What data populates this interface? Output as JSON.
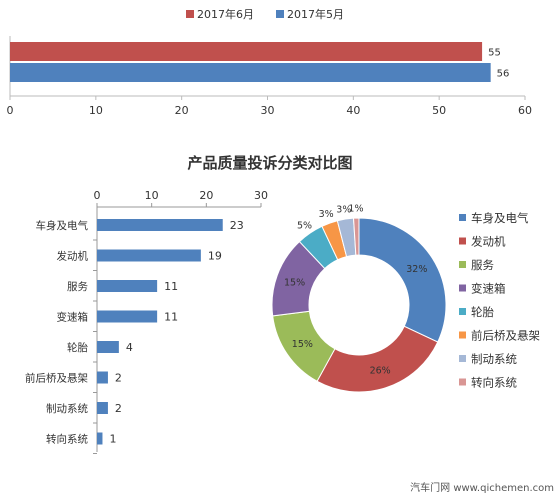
{
  "chart_data": [
    {
      "type": "bar",
      "orientation": "horizontal",
      "legend_position": "top",
      "xlim": [
        0,
        60
      ],
      "xticks": [
        0,
        10,
        20,
        30,
        40,
        50,
        60
      ],
      "series": [
        {
          "name": "2017年6月",
          "color": "#c0504d",
          "values": [
            55
          ]
        },
        {
          "name": "2017年5月",
          "color": "#4f81bd",
          "values": [
            56
          ]
        }
      ]
    },
    {
      "type": "bar",
      "orientation": "horizontal",
      "title": "产品质量投诉分类对比图",
      "xlim": [
        0,
        30
      ],
      "xticks": [
        0,
        10,
        20,
        30
      ],
      "color": "#4f81bd",
      "categories": [
        "车身及电气",
        "发动机",
        "服务",
        "变速箱",
        "轮胎",
        "前后桥及悬架",
        "制动系统",
        "转向系统"
      ],
      "values": [
        23,
        19,
        11,
        11,
        4,
        2,
        2,
        1
      ]
    },
    {
      "type": "pie",
      "donut": true,
      "legend_position": "right",
      "categories": [
        "车身及电气",
        "发动机",
        "服务",
        "变速箱",
        "轮胎",
        "前后桥及悬架",
        "制动系统",
        "转向系统"
      ],
      "values": [
        32,
        26,
        15,
        15,
        5,
        3,
        3,
        1
      ],
      "labels": [
        "32%",
        "26%",
        "15%",
        "15%",
        "5%",
        "3%",
        "3%",
        "1%"
      ],
      "colors": [
        "#4f81bd",
        "#c0504d",
        "#9bbb59",
        "#8064a2",
        "#4bacc6",
        "#f79646",
        "#a5b8d6",
        "#d99694"
      ]
    }
  ],
  "source": "汽车门网 www.qichemen.com"
}
